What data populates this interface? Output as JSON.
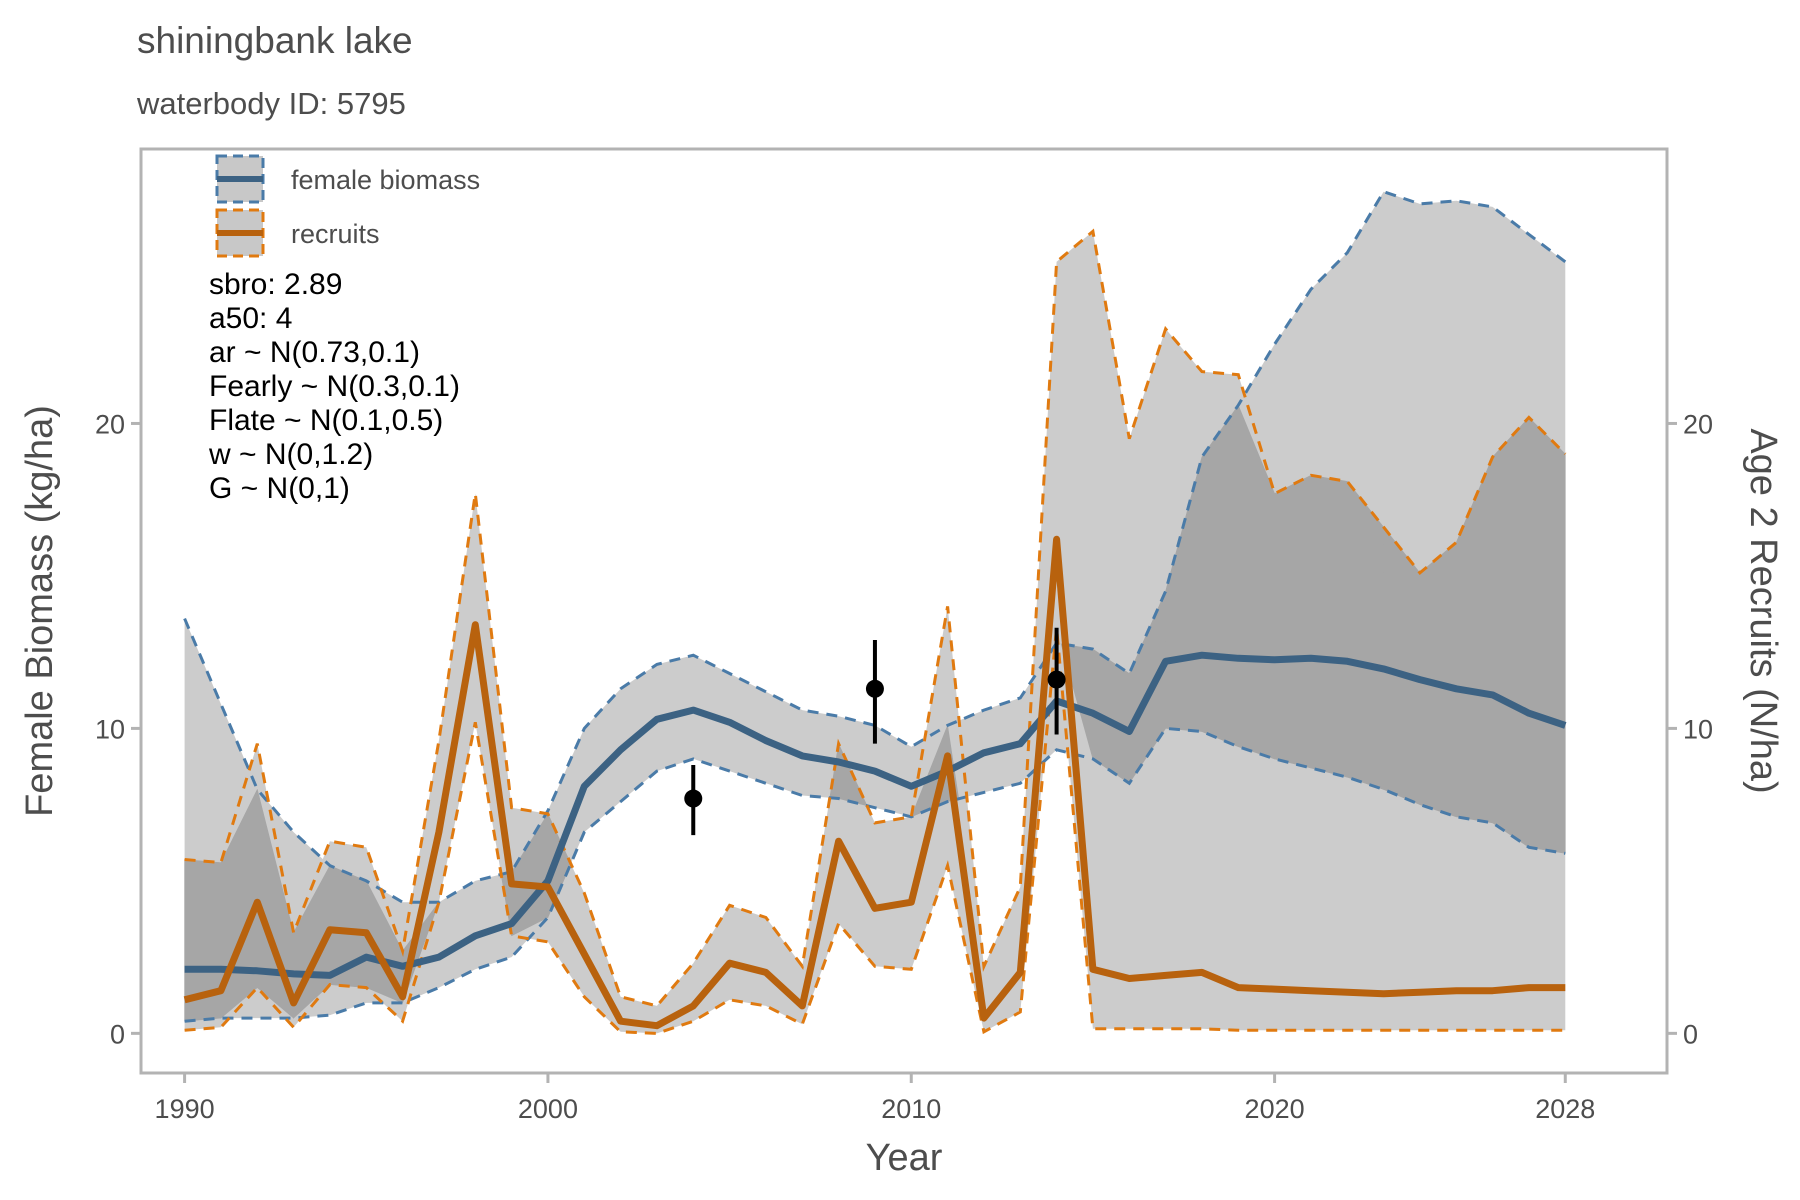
{
  "chart_data": {
    "type": "line",
    "title": "shiningbank lake",
    "subtitle": "waterbody ID: 5795",
    "xlabel": "Year",
    "ylabel": "Female Biomass (kg/ha)",
    "y2label": "Age 2 Recruits (N/ha)",
    "xlim": [
      1988.8,
      2030.8
    ],
    "ylim": [
      -1.3,
      29
    ],
    "xticks": [
      1990,
      2000,
      2010,
      2020,
      2028
    ],
    "xtick_labels": [
      "1990",
      "2000",
      "2010",
      "2020",
      "2028"
    ],
    "yticks": [
      0,
      10,
      20
    ],
    "ytick_labels": [
      "0",
      "10",
      "20"
    ],
    "y2ticks": [
      0,
      10,
      20
    ],
    "y2tick_labels": [
      "0",
      "10",
      "20"
    ],
    "grid": false,
    "legend_position": "top-left",
    "legend": [
      {
        "label": "female biomass",
        "line_color": "#3c6283",
        "border_color": "#4a7ba8",
        "fill": "#c8c8c8"
      },
      {
        "label": "recruits",
        "line_color": "#b8620e",
        "border_color": "#e07a10",
        "fill": "#c8c8c8"
      }
    ],
    "annotations": [
      "sbro: 2.89",
      "a50: 4",
      "ar ~ N(0.73,0.1)",
      "Fearly ~ N(0.3,0.1)",
      "Flate ~ N(0.1,0.5)",
      "w ~ N(0,1.2)",
      "G ~ N(0,1)"
    ],
    "x": [
      1990,
      1991,
      1992,
      1993,
      1994,
      1995,
      1996,
      1997,
      1998,
      1999,
      2000,
      2001,
      2002,
      2003,
      2004,
      2005,
      2006,
      2007,
      2008,
      2009,
      2010,
      2011,
      2012,
      2013,
      2014,
      2015,
      2016,
      2017,
      2018,
      2019,
      2020,
      2021,
      2022,
      2023,
      2024,
      2025,
      2026,
      2027,
      2028
    ],
    "series": [
      {
        "name": "female biomass",
        "color": "#3c6283",
        "band_border_color": "#4a7ba8",
        "median": [
          2.1,
          2.1,
          2.05,
          1.95,
          1.9,
          2.5,
          2.2,
          2.5,
          3.2,
          3.6,
          5.0,
          8.1,
          9.3,
          10.3,
          10.6,
          10.2,
          9.6,
          9.1,
          8.9,
          8.6,
          8.1,
          8.6,
          9.2,
          9.5,
          10.9,
          10.5,
          9.9,
          12.2,
          12.4,
          12.3,
          12.25,
          12.3,
          12.2,
          11.95,
          11.6,
          11.3,
          11.1,
          10.5,
          10.1
        ],
        "lower": [
          0.4,
          0.5,
          0.5,
          0.5,
          0.6,
          1.0,
          1.0,
          1.5,
          2.1,
          2.5,
          3.8,
          6.6,
          7.6,
          8.6,
          9.0,
          8.6,
          8.2,
          7.8,
          7.7,
          7.4,
          7.1,
          7.6,
          7.9,
          8.2,
          9.3,
          9.0,
          8.2,
          10.0,
          9.9,
          9.4,
          9.0,
          8.7,
          8.4,
          8.0,
          7.5,
          7.1,
          6.9,
          6.1,
          5.9
        ],
        "upper": [
          13.6,
          10.8,
          8.0,
          6.6,
          5.5,
          5.0,
          4.3,
          4.3,
          5.0,
          5.3,
          7.3,
          10.0,
          11.3,
          12.1,
          12.4,
          11.8,
          11.2,
          10.6,
          10.4,
          10.1,
          9.4,
          10.1,
          10.6,
          11.0,
          12.8,
          12.6,
          11.8,
          14.5,
          18.9,
          20.6,
          22.6,
          24.4,
          25.6,
          27.6,
          27.2,
          27.3,
          27.1,
          26.2,
          25.3
        ]
      },
      {
        "name": "recruits",
        "color": "#b8620e",
        "band_border_color": "#e07a10",
        "median": [
          1.1,
          1.4,
          4.3,
          1.0,
          3.4,
          3.3,
          1.2,
          6.6,
          13.4,
          4.9,
          4.8,
          2.6,
          0.4,
          0.25,
          0.9,
          2.3,
          2.0,
          0.9,
          6.3,
          4.1,
          4.3,
          9.1,
          0.5,
          2.0,
          16.2,
          2.1,
          1.8,
          1.9,
          2.0,
          1.5,
          1.45,
          1.4,
          1.35,
          1.3,
          1.35,
          1.4,
          1.4,
          1.5,
          1.5
        ],
        "lower": [
          0.1,
          0.2,
          1.5,
          0.2,
          1.6,
          1.5,
          0.4,
          4.3,
          10.2,
          3.2,
          3.0,
          1.2,
          0.05,
          0.0,
          0.4,
          1.1,
          0.9,
          0.3,
          3.6,
          2.2,
          2.1,
          5.5,
          0.05,
          0.7,
          13.3,
          0.15,
          0.15,
          0.15,
          0.15,
          0.1,
          0.1,
          0.1,
          0.1,
          0.1,
          0.1,
          0.1,
          0.1,
          0.1,
          0.1
        ],
        "upper": [
          5.7,
          5.6,
          9.5,
          3.3,
          6.3,
          6.1,
          2.7,
          9.6,
          17.7,
          7.4,
          7.2,
          4.6,
          1.2,
          0.9,
          2.3,
          4.2,
          3.8,
          2.2,
          9.5,
          6.9,
          7.1,
          14.0,
          2.2,
          4.8,
          25.3,
          26.3,
          19.5,
          23.1,
          21.7,
          21.6,
          17.7,
          18.3,
          18.1,
          16.6,
          15.1,
          16.1,
          18.9,
          20.2,
          19.0
        ]
      },
      {
        "name": "observations",
        "type": "scatter",
        "color": "#000000",
        "points": [
          {
            "x": 2004,
            "y": 7.7,
            "lo": 6.5,
            "hi": 8.8
          },
          {
            "x": 2009,
            "y": 11.3,
            "lo": 9.5,
            "hi": 12.9
          },
          {
            "x": 2014,
            "y": 11.6,
            "lo": 9.8,
            "hi": 13.3
          }
        ]
      }
    ],
    "overlap_color": "#a6a6a6",
    "band_color": "#cccccc",
    "panel_border_color": "#b3b3b3",
    "text_color": "#4d4d4d"
  }
}
